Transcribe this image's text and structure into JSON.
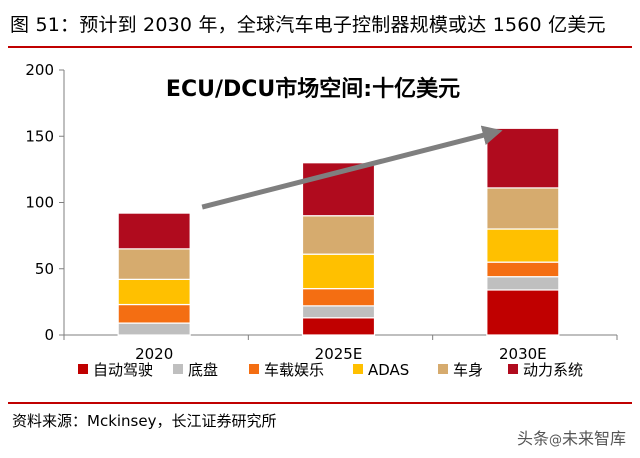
{
  "figure": {
    "title": "图 51：预计到 2030 年，全球汽车电子控制器规模或达 1560 亿美元",
    "source": "资料来源：Mckinsey，长江证券研究所",
    "watermark": {
      "prefix": "头条",
      "at": "@",
      "name": "未来智库"
    }
  },
  "chart_data": {
    "type": "bar",
    "stacked": true,
    "title": "ECU/DCU市场空间:十亿美元",
    "categories": [
      "2020",
      "2025E",
      "2030E"
    ],
    "series": [
      {
        "name": "自动驾驶",
        "color": "#c00000",
        "values": [
          0,
          13,
          34
        ]
      },
      {
        "name": "底盘",
        "color": "#bfbfbf",
        "values": [
          9,
          9,
          10
        ]
      },
      {
        "name": "车载娱乐",
        "color": "#f46e12",
        "values": [
          14,
          13,
          11
        ]
      },
      {
        "name": "ADAS",
        "color": "#ffc000",
        "values": [
          19,
          26,
          25
        ]
      },
      {
        "name": "车身",
        "color": "#d6ab6e",
        "values": [
          23,
          29,
          31
        ]
      },
      {
        "name": "动力系统",
        "color": "#b00b1e",
        "values": [
          27,
          40,
          45
        ]
      }
    ],
    "ylim": [
      0,
      200
    ],
    "yticks": [
      "0",
      "50",
      "100",
      "150",
      "200"
    ],
    "grid": false,
    "legend_position": "bottom",
    "trend_arrow_color": "#7f7f7f"
  }
}
